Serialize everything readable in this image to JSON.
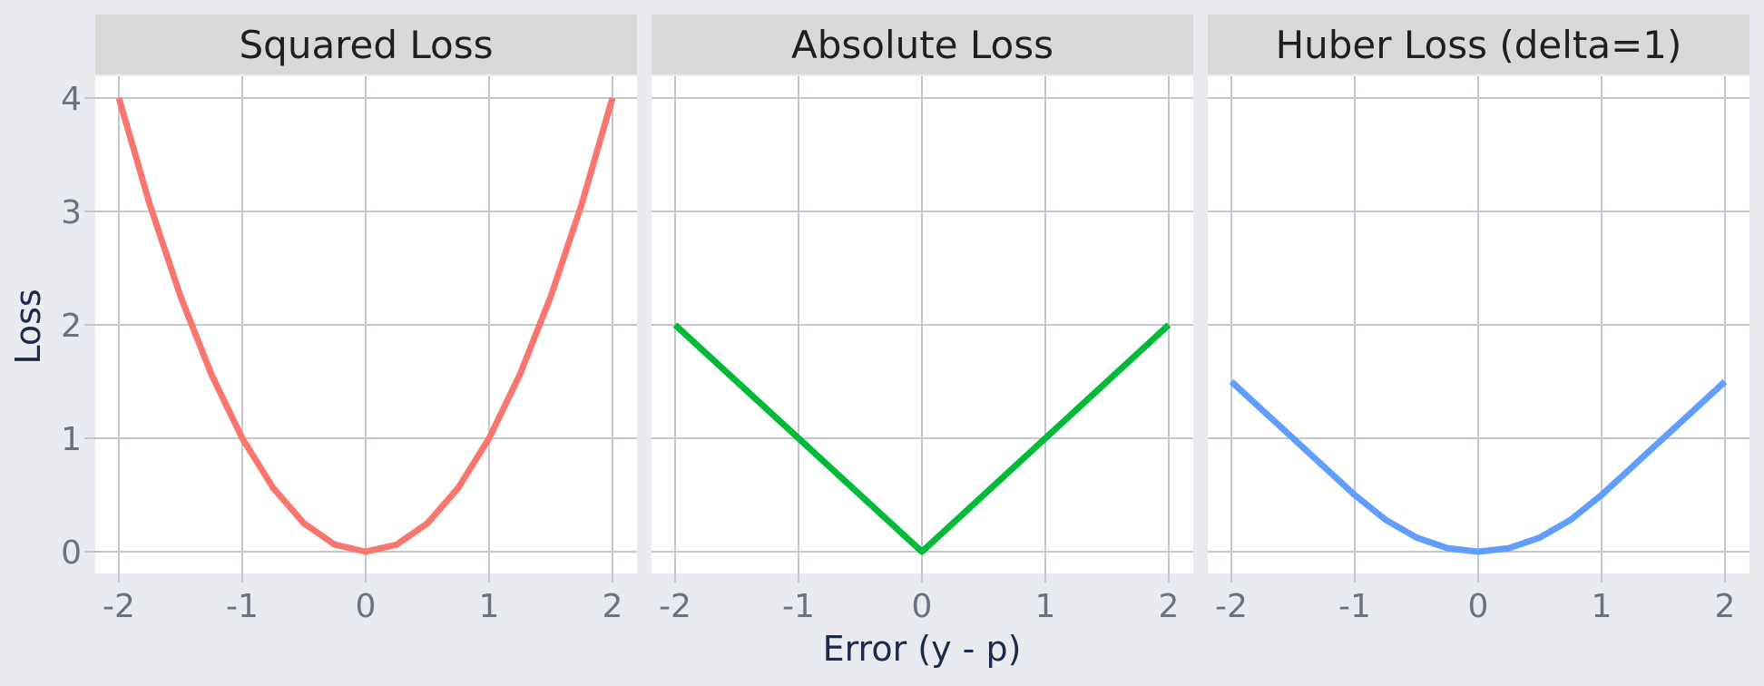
{
  "chart_data": {
    "type": "line",
    "facet_titles": [
      "Squared Loss",
      "Absolute Loss",
      "Huber Loss (delta=1)"
    ],
    "xlabel": "Error (y - p)",
    "ylabel": "Loss",
    "x_ticks": [
      "-2",
      "-1",
      "0",
      "1",
      "2"
    ],
    "y_ticks": [
      "0",
      "1",
      "2",
      "3",
      "4"
    ],
    "xlim": [
      -2,
      2
    ],
    "ylim": [
      0,
      4
    ],
    "grid": true,
    "legend": "none",
    "series": [
      {
        "color": "#f8766d",
        "x": [
          -2,
          -1.75,
          -1.5,
          -1.25,
          -1,
          -0.75,
          -0.5,
          -0.25,
          0,
          0.25,
          0.5,
          0.75,
          1,
          1.25,
          1.5,
          1.75,
          2
        ],
        "y": [
          4,
          3.0625,
          2.25,
          1.5625,
          1,
          0.5625,
          0.25,
          0.0625,
          0,
          0.0625,
          0.25,
          0.5625,
          1,
          1.5625,
          2.25,
          3.0625,
          4
        ]
      },
      {
        "color": "#00ba38",
        "x": [
          -2,
          -1,
          0,
          1,
          2
        ],
        "y": [
          2,
          1,
          0,
          1,
          2
        ]
      },
      {
        "color": "#619cff",
        "x": [
          -2,
          -1.75,
          -1.5,
          -1.25,
          -1,
          -0.75,
          -0.5,
          -0.25,
          0,
          0.25,
          0.5,
          0.75,
          1,
          1.25,
          1.5,
          1.75,
          2
        ],
        "y": [
          1.5,
          1.25,
          1,
          0.75,
          0.5,
          0.28125,
          0.125,
          0.03125,
          0,
          0.03125,
          0.125,
          0.28125,
          0.5,
          0.75,
          1,
          1.25,
          1.5
        ]
      }
    ]
  },
  "colors": {
    "panel_background": "#ffffff",
    "strip_background": "#d9d9d9",
    "grid": "#c3c7d0",
    "page_background": "#e9ebf0"
  }
}
